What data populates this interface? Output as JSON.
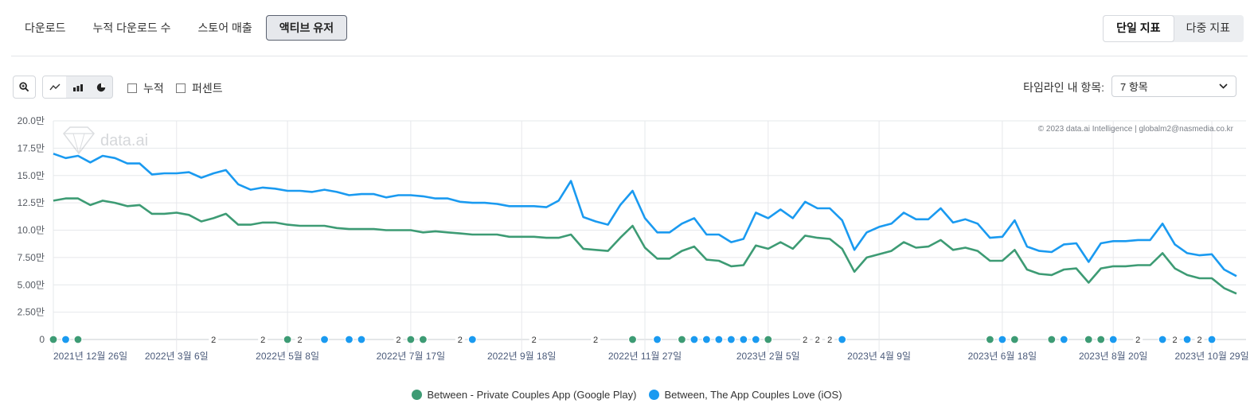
{
  "tabs": [
    "다운로드",
    "누적 다운로드 수",
    "스토어 매출",
    "액티브 유저"
  ],
  "active_tab": 3,
  "metric_toggle": {
    "single": "단일 지표",
    "multi": "다중 지표"
  },
  "toolbar": {
    "zoom_icon": "zoom-icon",
    "chart_types": [
      "line-chart-icon",
      "bar-chart-icon",
      "pie-chart-icon"
    ],
    "cumulative_label": "누적",
    "percent_label": "퍼센트",
    "timeline_label": "타임라인 내 항목:",
    "timeline_value": "7 항목"
  },
  "watermark": {
    "logo_text": "data.ai",
    "copyright": "© 2023 data.ai Intelligence | globalm2@nasmedia.co.kr"
  },
  "colors": {
    "google": "#3d9b74",
    "ios": "#1a9af0"
  },
  "chart_data": {
    "type": "line",
    "y_ticks": [
      "0",
      "2.50만",
      "5.00만",
      "7.50만",
      "10.0만",
      "12.5만",
      "15.0만",
      "17.5만",
      "20.0만"
    ],
    "ylim": [
      0,
      20
    ],
    "x_ticks": [
      "2021년 12월 26일",
      "2022년 3월 6일",
      "2022년 5월 8일",
      "2022년 7월 17일",
      "2022년 9월 18일",
      "2022년 11월 27일",
      "2023년 2월 5일",
      "2023년 4월 9일",
      "2023년 6월 18일",
      "2023년 8월 20일",
      "2023년 10월 29일"
    ],
    "series": [
      {
        "name": "Between - Private Couples App (Google Play)",
        "color": "#3d9b74",
        "values": [
          12.7,
          12.9,
          12.9,
          12.3,
          12.7,
          12.5,
          12.2,
          12.3,
          11.5,
          11.5,
          11.6,
          11.4,
          10.8,
          11.1,
          11.5,
          10.5,
          10.5,
          10.7,
          10.7,
          10.5,
          10.4,
          10.4,
          10.4,
          10.2,
          10.1,
          10.1,
          10.1,
          10.0,
          10.0,
          10.0,
          9.8,
          9.9,
          9.8,
          9.7,
          9.6,
          9.6,
          9.6,
          9.4,
          9.4,
          9.4,
          9.3,
          9.3,
          9.6,
          8.3,
          8.2,
          8.1,
          9.3,
          10.4,
          8.4,
          7.4,
          7.4,
          8.1,
          8.5,
          7.3,
          7.2,
          6.7,
          6.8,
          8.6,
          8.3,
          8.9,
          8.3,
          9.5,
          9.3,
          9.2,
          8.3,
          6.2,
          7.5,
          7.8,
          8.1,
          8.9,
          8.4,
          8.5,
          9.1,
          8.2,
          8.4,
          8.1,
          7.2,
          7.2,
          8.2,
          6.4,
          6.0,
          5.9,
          6.4,
          6.5,
          5.2,
          6.5,
          6.7,
          6.7,
          6.8,
          6.8,
          7.9,
          6.5,
          5.9,
          5.6,
          5.6,
          4.7,
          4.2
        ]
      },
      {
        "name": "Between, The App Couples Love (iOS)",
        "color": "#1a9af0",
        "values": [
          17.0,
          16.6,
          16.8,
          16.2,
          16.8,
          16.6,
          16.1,
          16.1,
          15.1,
          15.2,
          15.2,
          15.3,
          14.8,
          15.2,
          15.5,
          14.2,
          13.7,
          13.9,
          13.8,
          13.6,
          13.6,
          13.5,
          13.7,
          13.5,
          13.2,
          13.3,
          13.3,
          13.0,
          13.2,
          13.2,
          13.1,
          12.9,
          12.9,
          12.6,
          12.5,
          12.5,
          12.4,
          12.2,
          12.2,
          12.2,
          12.1,
          12.7,
          14.5,
          11.2,
          10.8,
          10.5,
          12.3,
          13.6,
          11.1,
          9.8,
          9.8,
          10.6,
          11.1,
          9.6,
          9.6,
          8.9,
          9.2,
          11.6,
          11.1,
          11.9,
          11.1,
          12.6,
          12.0,
          12.0,
          10.9,
          8.2,
          9.8,
          10.3,
          10.6,
          11.6,
          11.0,
          11.0,
          12.0,
          10.7,
          11.0,
          10.6,
          9.3,
          9.4,
          10.9,
          8.5,
          8.1,
          8.0,
          8.7,
          8.8,
          7.1,
          8.8,
          9.0,
          9.0,
          9.1,
          9.1,
          10.6,
          8.7,
          7.9,
          7.7,
          7.8,
          6.4,
          5.8
        ]
      }
    ],
    "markers": [
      {
        "label": "",
        "color": "#3d9b74"
      },
      {
        "label": "",
        "color": "#1a9af0"
      },
      {
        "label": "",
        "color": "#3d9b74"
      },
      {
        "label": "2",
        "color": ""
      },
      {
        "label": "2",
        "color": ""
      },
      {
        "label": "",
        "color": "#3d9b74"
      },
      {
        "label": "2",
        "color": ""
      },
      {
        "label": "",
        "color": "#1a9af0"
      },
      {
        "label": "",
        "color": "#1a9af0"
      },
      {
        "label": "",
        "color": "#1a9af0"
      },
      {
        "label": "2",
        "color": ""
      },
      {
        "label": "",
        "color": "#3d9b74"
      },
      {
        "label": "",
        "color": "#3d9b74"
      },
      {
        "label": "2",
        "color": ""
      },
      {
        "label": "",
        "color": "#1a9af0"
      },
      {
        "label": "2",
        "color": ""
      },
      {
        "label": "2",
        "color": ""
      },
      {
        "label": "",
        "color": "#3d9b74"
      },
      {
        "label": "",
        "color": "#1a9af0"
      },
      {
        "label": "",
        "color": "#3d9b74"
      },
      {
        "label": "",
        "color": "#1a9af0"
      },
      {
        "label": "",
        "color": "#1a9af0"
      },
      {
        "label": "",
        "color": "#1a9af0"
      },
      {
        "label": "",
        "color": "#1a9af0"
      },
      {
        "label": "",
        "color": "#1a9af0"
      },
      {
        "label": "",
        "color": "#1a9af0"
      },
      {
        "label": "",
        "color": "#3d9b74"
      },
      {
        "label": "2",
        "color": ""
      },
      {
        "label": "2",
        "color": ""
      },
      {
        "label": "2",
        "color": ""
      },
      {
        "label": "",
        "color": "#1a9af0"
      },
      {
        "label": "",
        "color": "#3d9b74"
      },
      {
        "label": "",
        "color": "#1a9af0"
      },
      {
        "label": "",
        "color": "#3d9b74"
      },
      {
        "label": "",
        "color": "#3d9b74"
      },
      {
        "label": "",
        "color": "#1a9af0"
      },
      {
        "label": "",
        "color": "#3d9b74"
      },
      {
        "label": "",
        "color": "#3d9b74"
      },
      {
        "label": "",
        "color": "#1a9af0"
      },
      {
        "label": "2",
        "color": ""
      },
      {
        "label": "",
        "color": "#1a9af0"
      },
      {
        "label": "2",
        "color": ""
      },
      {
        "label": "",
        "color": "#1a9af0"
      },
      {
        "label": "2",
        "color": ""
      },
      {
        "label": "",
        "color": "#1a9af0"
      }
    ],
    "marker_x_days": [
      0,
      7,
      14,
      91,
      119,
      133,
      140,
      154,
      168,
      175,
      196,
      203,
      210,
      231,
      238,
      273,
      308,
      329,
      343,
      357,
      364,
      371,
      378,
      385,
      392,
      399,
      406,
      427,
      434,
      441,
      448,
      532,
      539,
      546,
      567,
      574,
      588,
      595,
      602,
      616,
      630,
      637,
      644,
      651,
      658
    ],
    "tick_x_days": [
      0,
      70,
      133,
      203,
      266,
      336,
      406,
      469,
      539,
      602,
      658
    ]
  },
  "legend": [
    "Between - Private Couples App (Google Play)",
    "Between, The App Couples Love (iOS)"
  ]
}
